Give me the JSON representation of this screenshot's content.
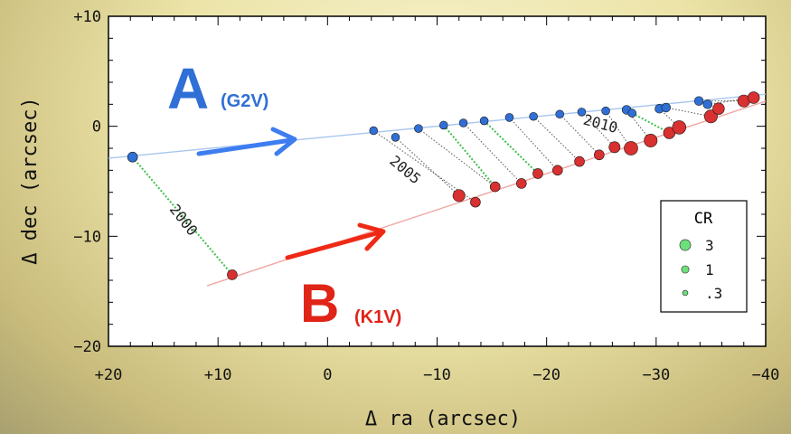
{
  "chart_data": {
    "type": "scatter",
    "xlabel": "Δ ra  (arcsec)",
    "ylabel": "Δ dec  (arcsec)",
    "xlim": [
      20,
      -40
    ],
    "ylim": [
      -20,
      10
    ],
    "x_ticks": [
      {
        "v": 20,
        "label": "+20"
      },
      {
        "v": 10,
        "label": "+10"
      },
      {
        "v": 0,
        "label": "0"
      },
      {
        "v": -10,
        "label": "−10"
      },
      {
        "v": -20,
        "label": "−20"
      },
      {
        "v": -30,
        "label": "−30"
      },
      {
        "v": -40,
        "label": "−40"
      }
    ],
    "y_ticks": [
      {
        "v": 10,
        "label": "+10"
      },
      {
        "v": 0,
        "label": "0"
      },
      {
        "v": -10,
        "label": "−10"
      },
      {
        "v": -20,
        "label": "−20"
      }
    ],
    "series": [
      {
        "name": "A",
        "spectral_type": "(G2V)",
        "color": "#2f6fd6",
        "orbit_line": [
          [
            21,
            -3.0
          ],
          [
            -45,
            3.4
          ]
        ],
        "points": [
          {
            "x": 17.8,
            "y": -2.8,
            "cr": 1
          },
          {
            "x": -4.2,
            "y": -0.4,
            "cr": 0.5
          },
          {
            "x": -6.2,
            "y": -1.0,
            "cr": 0.5
          },
          {
            "x": -8.3,
            "y": -0.2,
            "cr": 0.5
          },
          {
            "x": -10.6,
            "y": 0.1,
            "cr": 0.5
          },
          {
            "x": -12.4,
            "y": 0.3,
            "cr": 0.5
          },
          {
            "x": -14.3,
            "y": 0.5,
            "cr": 0.5
          },
          {
            "x": -16.6,
            "y": 0.8,
            "cr": 0.5
          },
          {
            "x": -18.8,
            "y": 0.9,
            "cr": 0.5
          },
          {
            "x": -21.2,
            "y": 1.1,
            "cr": 0.5
          },
          {
            "x": -23.2,
            "y": 1.3,
            "cr": 0.5
          },
          {
            "x": -25.4,
            "y": 1.4,
            "cr": 0.5
          },
          {
            "x": -27.3,
            "y": 1.5,
            "cr": 0.7
          },
          {
            "x": -27.8,
            "y": 1.2,
            "cr": 0.5
          },
          {
            "x": -30.3,
            "y": 1.6,
            "cr": 0.7
          },
          {
            "x": -30.9,
            "y": 1.7,
            "cr": 0.7
          },
          {
            "x": -33.9,
            "y": 2.3,
            "cr": 0.7
          },
          {
            "x": -34.7,
            "y": 2.0,
            "cr": 0.7
          }
        ]
      },
      {
        "name": "B",
        "spectral_type": "(K1V)",
        "color": "#d62f2f",
        "orbit_line": [
          [
            11,
            -14.5
          ],
          [
            -44,
            3.6
          ]
        ],
        "points": [
          {
            "x": 8.7,
            "y": -13.5,
            "cr": 1
          },
          {
            "x": -12.0,
            "y": -6.3,
            "cr": 1.8
          },
          {
            "x": -13.5,
            "y": -6.9,
            "cr": 1
          },
          {
            "x": -15.3,
            "y": -5.5,
            "cr": 1
          },
          {
            "x": -17.7,
            "y": -5.2,
            "cr": 1
          },
          {
            "x": -19.2,
            "y": -4.3,
            "cr": 1
          },
          {
            "x": -21.0,
            "y": -4.0,
            "cr": 1
          },
          {
            "x": -23.0,
            "y": -3.2,
            "cr": 1
          },
          {
            "x": -24.8,
            "y": -2.6,
            "cr": 1
          },
          {
            "x": -26.2,
            "y": -1.9,
            "cr": 1.4
          },
          {
            "x": -27.7,
            "y": -2.0,
            "cr": 2.5
          },
          {
            "x": -29.5,
            "y": -1.3,
            "cr": 2.2
          },
          {
            "x": -31.2,
            "y": -0.6,
            "cr": 1.6
          },
          {
            "x": -32.1,
            "y": -0.1,
            "cr": 2.4
          },
          {
            "x": -35.0,
            "y": 0.9,
            "cr": 2.2
          },
          {
            "x": -35.7,
            "y": 1.6,
            "cr": 1.6
          },
          {
            "x": -38.0,
            "y": 2.3,
            "cr": 1.8
          },
          {
            "x": -38.9,
            "y": 2.6,
            "cr": 1.6
          }
        ]
      }
    ],
    "pairings": [
      {
        "a": 0,
        "b": 0,
        "style": "green"
      },
      {
        "a": 1,
        "b": 2,
        "style": "gray"
      },
      {
        "a": 2,
        "b": 1,
        "style": "gray"
      },
      {
        "a": 3,
        "b": 3,
        "style": "gray"
      },
      {
        "a": 4,
        "b": 3,
        "style": "green"
      },
      {
        "a": 5,
        "b": 4,
        "style": "gray"
      },
      {
        "a": 6,
        "b": 5,
        "style": "green"
      },
      {
        "a": 7,
        "b": 6,
        "style": "gray"
      },
      {
        "a": 8,
        "b": 7,
        "style": "gray"
      },
      {
        "a": 9,
        "b": 8,
        "style": "gray"
      },
      {
        "a": 10,
        "b": 9,
        "style": "gray"
      },
      {
        "a": 11,
        "b": 10,
        "style": "gray"
      },
      {
        "a": 12,
        "b": 11,
        "style": "gray"
      },
      {
        "a": 13,
        "b": 12,
        "style": "green"
      },
      {
        "a": 14,
        "b": 13,
        "style": "gray"
      },
      {
        "a": 15,
        "b": 14,
        "style": "gray"
      },
      {
        "a": 16,
        "b": 16,
        "style": "gray"
      },
      {
        "a": 17,
        "b": 17,
        "style": "gray"
      }
    ],
    "annotations": [
      {
        "text": "2000",
        "x": 13.5,
        "y": -8.8,
        "rotate": 52
      },
      {
        "text": "2005",
        "x": -6.8,
        "y": -4.3,
        "rotate": 40
      },
      {
        "text": "2010",
        "x": -24.8,
        "y": -0.2,
        "rotate": 15
      }
    ],
    "legend": {
      "title": "CR",
      "placement": "right",
      "entries": [
        {
          "label": "3",
          "cr": 3
        },
        {
          "label": "1",
          "cr": 1
        },
        {
          "label": ".3",
          "cr": 0.3
        }
      ],
      "color": "#6ee07a"
    },
    "grid": false
  },
  "labels": {
    "star_a": "A",
    "star_a_type": "(G2V)",
    "star_b": "B",
    "star_b_type": "(K1V)"
  },
  "colors": {
    "star_a": "#2f6fd6",
    "star_b": "#e02418",
    "legend_marker": "#6ee07a"
  }
}
